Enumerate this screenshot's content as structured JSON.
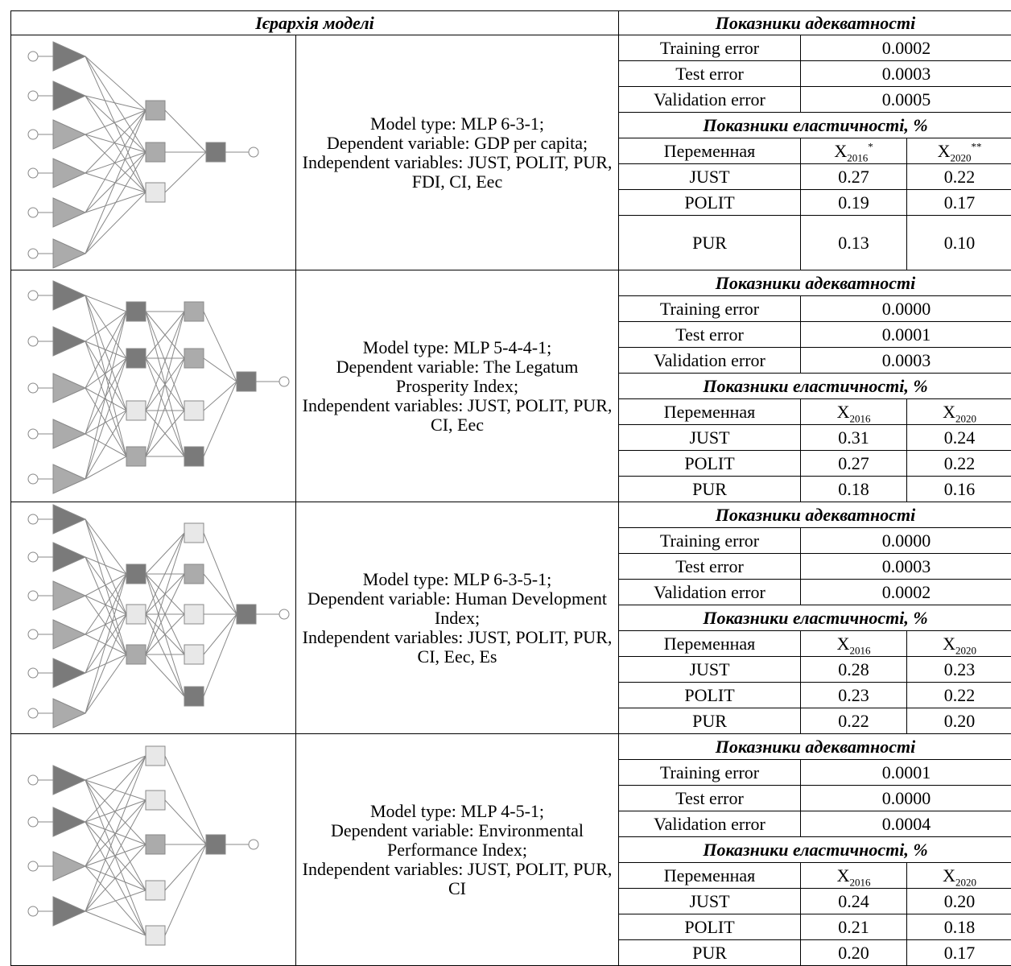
{
  "header": {
    "left": "Ієрархія моделі",
    "right": "Показники адекватності"
  },
  "models": [
    {
      "description": [
        "Model type: MLP 6-3-1;",
        "Dependent variable: GDP per capita;",
        "Independent variables: JUST, POLIT, PUR, FDI, CI, Eec"
      ],
      "adequacy": [
        {
          "label": "Training error",
          "value": "0.0002"
        },
        {
          "label": "Test error",
          "value": "0.0003"
        },
        {
          "label": "Validation error",
          "value": "0.0005"
        }
      ],
      "elasticity_title": "Показники еластичності, %",
      "elasticity_header": {
        "variable": "Переменная",
        "col1": {
          "base": "X",
          "sub": "2016",
          "sup": "*"
        },
        "col2": {
          "base": "X",
          "sub": "2020",
          "sup": "**"
        }
      },
      "elasticity": [
        [
          "JUST",
          "0.27",
          "0.22"
        ],
        [
          "POLIT",
          "0.19",
          "0.17"
        ],
        [
          "PUR",
          "0.13",
          "0.10"
        ]
      ]
    },
    {
      "description": [
        "Model type: MLP 5-4-4-1;",
        "Dependent variable: The Legatum Prosperity Index;",
        "Independent variables: JUST, POLIT, PUR, CI, Eec"
      ],
      "adequacy_title": "Показники адекватності",
      "adequacy": [
        {
          "label": "Training error",
          "value": "0.0000"
        },
        {
          "label": "Test error",
          "value": "0.0001"
        },
        {
          "label": "Validation error",
          "value": "0.0003"
        }
      ],
      "elasticity_title": "Показники еластичності,  %",
      "elasticity_header": {
        "variable": "Переменная",
        "col1": {
          "base": "X",
          "sub": "2016"
        },
        "col2": {
          "base": "X",
          "sub": "2020"
        }
      },
      "elasticity": [
        [
          "JUST",
          "0.31",
          "0.24"
        ],
        [
          "POLIT",
          "0.27",
          "0.22"
        ],
        [
          "PUR",
          "0.18",
          "0.16"
        ]
      ]
    },
    {
      "description": [
        "Model type: MLP 6-3-5-1;",
        "Dependent variable: Human Development Index;",
        "Independent variables: JUST, POLIT, PUR, CI, Eec, Es"
      ],
      "adequacy_title": "Показники адекватності",
      "adequacy": [
        {
          "label": "Training error",
          "value": "0.0000"
        },
        {
          "label": "Test error",
          "value": "0.0003"
        },
        {
          "label": "Validation error",
          "value": "0.0002"
        }
      ],
      "elasticity_title": "Показники еластичності, %",
      "elasticity_header": {
        "variable": "Переменная",
        "col1": {
          "base": "X",
          "sub": "2016"
        },
        "col2": {
          "base": "X",
          "sub": "2020"
        }
      },
      "elasticity": [
        [
          "JUST",
          "0.28",
          "0.23"
        ],
        [
          "POLIT",
          "0.23",
          "0.22"
        ],
        [
          "PUR",
          "0.22",
          "0.20"
        ]
      ]
    },
    {
      "description": [
        "Model type: MLP 4-5-1;",
        "Dependent variable: Environmental Performance Index;",
        "Independent variables: JUST, POLIT, PUR, CI"
      ],
      "adequacy_title": "Показники адекватності",
      "adequacy": [
        {
          "label": "Training error",
          "value": "0.0001"
        },
        {
          "label": "Test error",
          "value": "0.0000"
        },
        {
          "label": "Validation error",
          "value": "0.0004"
        }
      ],
      "elasticity_title": "Показники еластичності, %",
      "elasticity_header": {
        "variable": "Переменная",
        "col1": {
          "base": "X",
          "sub": "2016"
        },
        "col2": {
          "base": "X",
          "sub": "2020"
        }
      },
      "elasticity": [
        [
          "JUST",
          "0.24",
          "0.20"
        ],
        [
          "POLIT",
          "0.21",
          "0.18"
        ],
        [
          "PUR",
          "0.20",
          "0.17"
        ]
      ]
    }
  ]
}
